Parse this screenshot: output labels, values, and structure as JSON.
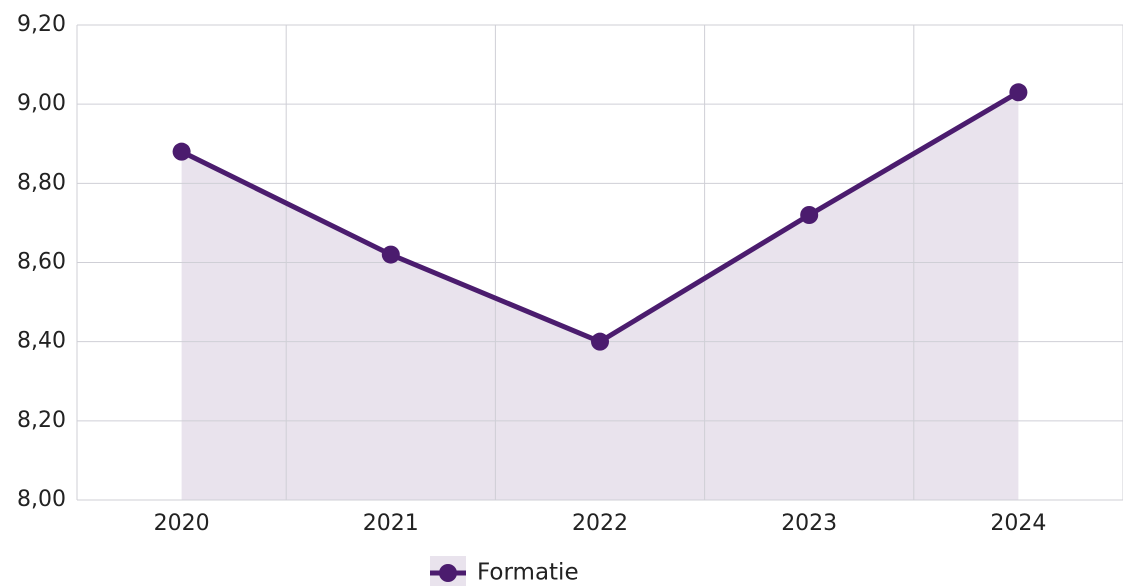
{
  "chart_data": {
    "type": "line",
    "categories": [
      "2020",
      "2021",
      "2022",
      "2023",
      "2024"
    ],
    "series": [
      {
        "name": "Formatie",
        "color": "#4b1c6e",
        "values": [
          8.88,
          8.62,
          8.4,
          8.72,
          9.03
        ]
      }
    ],
    "ylim": [
      8.0,
      9.2
    ],
    "yticks": [
      {
        "value": 8.0,
        "label": "8,00"
      },
      {
        "value": 8.2,
        "label": "8,20"
      },
      {
        "value": 8.4,
        "label": "8,40"
      },
      {
        "value": 8.6,
        "label": "8,60"
      },
      {
        "value": 8.8,
        "label": "8,80"
      },
      {
        "value": 9.0,
        "label": "9,00"
      },
      {
        "value": 9.2,
        "label": "9,20"
      }
    ],
    "grid": true,
    "area": true,
    "legend": "bottom"
  }
}
